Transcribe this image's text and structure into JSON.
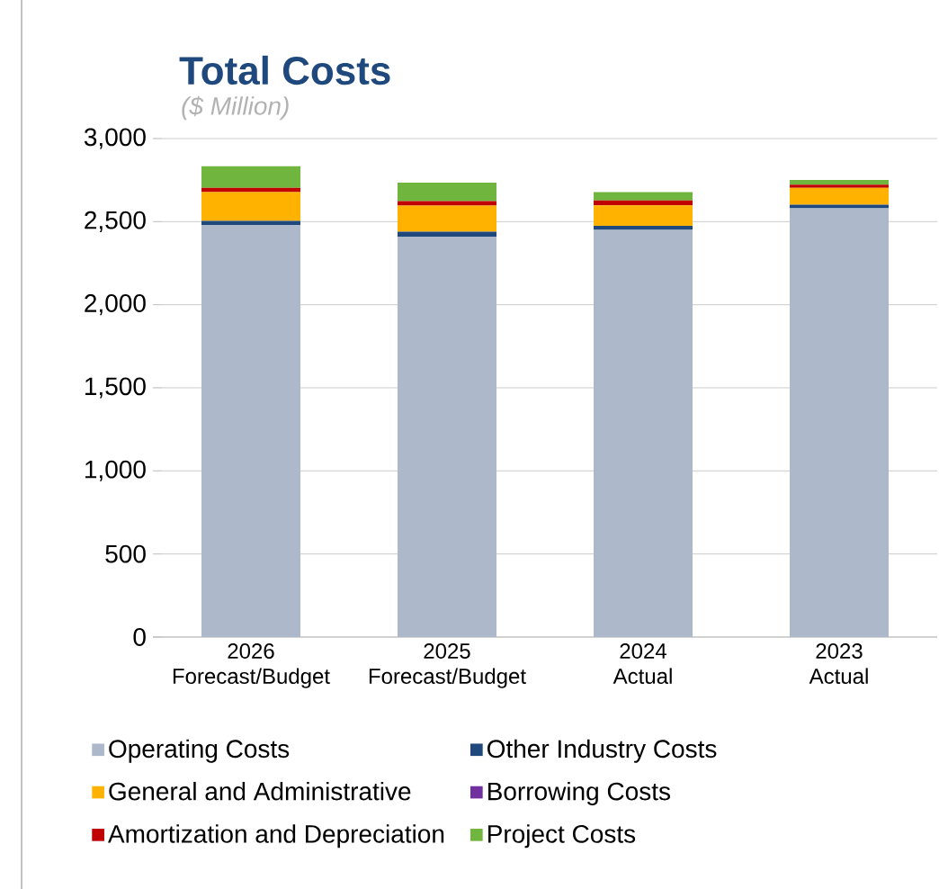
{
  "chart_data": {
    "type": "bar",
    "stacked": true,
    "title": "Total Costs",
    "subtitle": "($ Million)",
    "categories": [
      "2026\nForecast/Budget",
      "2025\nForecast/Budget",
      "2024\nActual",
      "2023\nActual"
    ],
    "series": [
      {
        "name": "Operating Costs",
        "color": "#adb9ca",
        "values": [
          2480,
          2410,
          2450,
          2580
        ]
      },
      {
        "name": "Other Industry Costs",
        "color": "#1f497d",
        "values": [
          25,
          29,
          25,
          22
        ]
      },
      {
        "name": "General and Administrative",
        "color": "#ffb300",
        "values": [
          173,
          158,
          123,
          101
        ]
      },
      {
        "name": "Borrowing Costs",
        "color": "#7030a0",
        "values": [
          null,
          null,
          null,
          null
        ]
      },
      {
        "name": "Amortization and Depreciation",
        "color": "#c00000",
        "values": [
          26,
          26,
          29,
          19
        ]
      },
      {
        "name": "Project Costs",
        "color": "#70b63e",
        "values": [
          130,
          112,
          51,
          29
        ]
      }
    ],
    "ylim": [
      0,
      3000
    ],
    "yticks": [
      {
        "value": 0,
        "label": "0"
      },
      {
        "value": 500,
        "label": "500"
      },
      {
        "value": 1000,
        "label": "1,000"
      },
      {
        "value": 1500,
        "label": "1,500"
      },
      {
        "value": 2000,
        "label": "2,000"
      },
      {
        "value": 2500,
        "label": "2,500"
      },
      {
        "value": 3000,
        "label": "3,000"
      }
    ],
    "grid": "y",
    "legend": "bottom"
  }
}
